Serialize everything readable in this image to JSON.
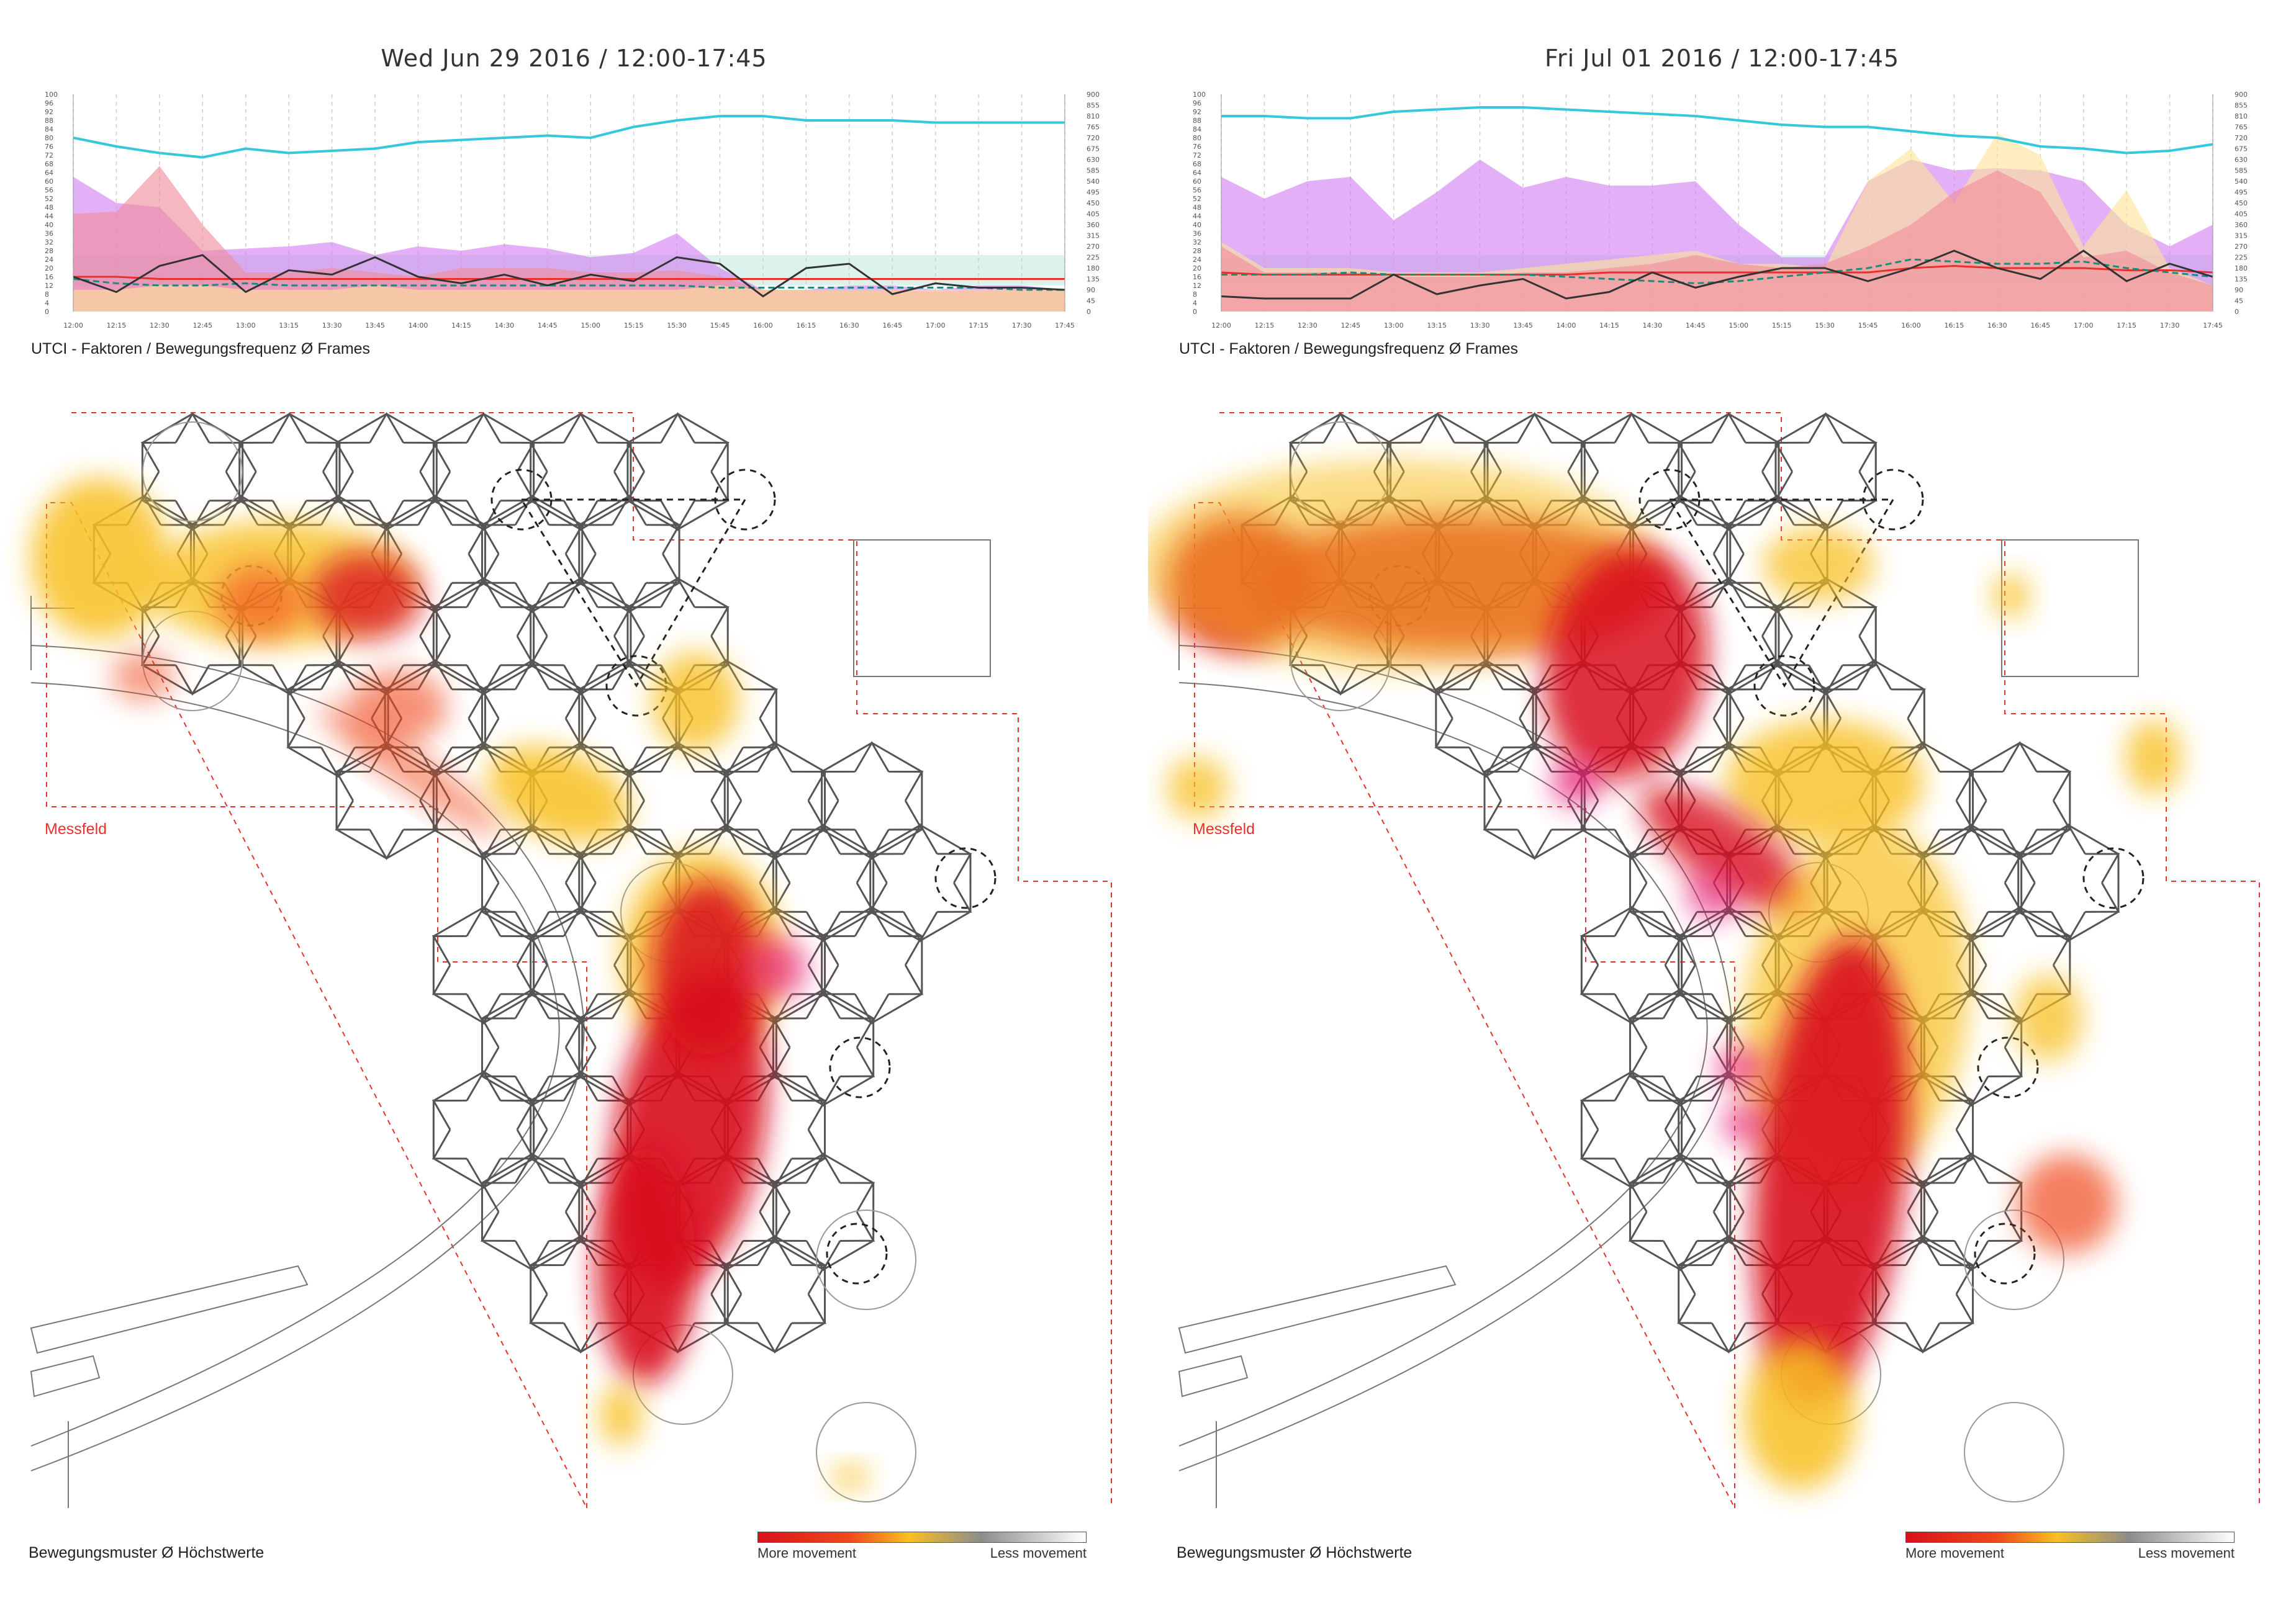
{
  "chart_data": [
    {
      "type": "area",
      "title": "Wed Jun 29 2016  /  12:00-17:45",
      "caption": "UTCI - Faktoren / Bewegungsfrequenz Ø Frames",
      "x": [
        "12:00",
        "12:15",
        "12:30",
        "12:45",
        "13:00",
        "13:15",
        "13:30",
        "13:45",
        "14:00",
        "14:15",
        "14:30",
        "14:45",
        "15:00",
        "15:15",
        "15:30",
        "15:45",
        "16:00",
        "16:15",
        "16:30",
        "16:45",
        "17:00",
        "17:15",
        "17:30",
        "17:45"
      ],
      "yticks_left": [
        "100",
        "96",
        "92",
        "88",
        "84",
        "80",
        "76",
        "72",
        "68",
        "64",
        "60",
        "56",
        "52",
        "48",
        "44",
        "40",
        "36",
        "32",
        "28",
        "24",
        "20",
        "16",
        "12",
        "8",
        "4",
        "0"
      ],
      "yticks_right": [
        "900",
        "855",
        "810",
        "765",
        "720",
        "675",
        "630",
        "585",
        "540",
        "495",
        "450",
        "405",
        "360",
        "315",
        "270",
        "225",
        "180",
        "135",
        "90",
        "45",
        "0"
      ],
      "ylim_left": [
        0,
        100
      ],
      "ylim_right": [
        0,
        900
      ],
      "comfort_band": [
        12,
        26
      ],
      "series": [
        {
          "name": "cyan",
          "color": "#35c8dc",
          "kind": "line",
          "values": [
            80,
            76,
            73,
            71,
            75,
            73,
            74,
            75,
            78,
            79,
            80,
            81,
            80,
            85,
            88,
            90,
            90,
            88,
            88,
            88,
            87,
            87,
            87,
            87
          ]
        },
        {
          "name": "violet",
          "color": "#d27ef0",
          "kind": "area",
          "values": [
            62,
            50,
            48,
            28,
            29,
            30,
            32,
            26,
            30,
            28,
            31,
            29,
            25,
            27,
            36,
            20,
            10,
            10,
            12,
            12,
            10,
            12,
            12,
            10
          ]
        },
        {
          "name": "pink",
          "color": "#f08c9a",
          "kind": "area",
          "values": [
            45,
            46,
            67,
            40,
            18,
            18,
            20,
            18,
            16,
            20,
            20,
            20,
            18,
            18,
            19,
            16,
            10,
            10,
            10,
            10,
            9,
            10,
            10,
            10
          ]
        },
        {
          "name": "yellow",
          "color": "#fde49a",
          "kind": "area",
          "values": [
            10,
            10,
            12,
            12,
            10,
            10,
            10,
            12,
            10,
            10,
            10,
            10,
            10,
            10,
            10,
            12,
            10,
            10,
            10,
            10,
            10,
            10,
            10,
            10
          ]
        },
        {
          "name": "red",
          "color": "#e8302c",
          "kind": "line",
          "values": [
            16,
            16,
            15,
            15,
            15,
            15,
            15,
            15,
            15,
            15,
            15,
            15,
            15,
            15,
            15,
            15,
            15,
            15,
            15,
            15,
            15,
            15,
            15,
            15
          ]
        },
        {
          "name": "teal-dashed",
          "color": "#1a8c7a",
          "kind": "dashed",
          "values": [
            15,
            13,
            12,
            12,
            13,
            12,
            12,
            12,
            12,
            12,
            12,
            12,
            12,
            12,
            12,
            11,
            11,
            11,
            11,
            11,
            11,
            11,
            10,
            10
          ]
        },
        {
          "name": "black",
          "color": "#333333",
          "kind": "line",
          "values": [
            16,
            9,
            21,
            26,
            9,
            19,
            17,
            25,
            16,
            13,
            17,
            12,
            17,
            14,
            25,
            22,
            7,
            20,
            22,
            8,
            13,
            11,
            11,
            10
          ]
        }
      ]
    },
    {
      "type": "area",
      "title": "Fri Jul 01 2016  /  12:00-17:45",
      "caption": "UTCI - Faktoren / Bewegungsfrequenz Ø Frames",
      "x": [
        "12:00",
        "12:15",
        "12:30",
        "12:45",
        "13:00",
        "13:15",
        "13:30",
        "13:45",
        "14:00",
        "14:15",
        "14:30",
        "14:45",
        "15:00",
        "15:15",
        "15:30",
        "15:45",
        "16:00",
        "16:15",
        "16:30",
        "16:45",
        "17:00",
        "17:15",
        "17:30",
        "17:45"
      ],
      "yticks_left": [
        "100",
        "96",
        "92",
        "88",
        "84",
        "80",
        "76",
        "72",
        "68",
        "64",
        "60",
        "56",
        "52",
        "48",
        "44",
        "40",
        "36",
        "32",
        "28",
        "24",
        "20",
        "16",
        "12",
        "8",
        "4",
        "0"
      ],
      "yticks_right": [
        "900",
        "855",
        "810",
        "765",
        "720",
        "675",
        "630",
        "585",
        "540",
        "495",
        "450",
        "405",
        "360",
        "315",
        "270",
        "225",
        "180",
        "135",
        "90",
        "45",
        "0"
      ],
      "ylim_left": [
        0,
        100
      ],
      "ylim_right": [
        0,
        900
      ],
      "comfort_band": [
        12,
        26
      ],
      "series": [
        {
          "name": "cyan",
          "color": "#35c8dc",
          "kind": "line",
          "values": [
            90,
            90,
            89,
            89,
            92,
            93,
            94,
            94,
            93,
            92,
            91,
            90,
            88,
            86,
            85,
            85,
            83,
            81,
            80,
            76,
            75,
            73,
            74,
            77
          ]
        },
        {
          "name": "violet",
          "color": "#d27ef0",
          "kind": "area",
          "values": [
            62,
            52,
            60,
            62,
            42,
            55,
            70,
            57,
            62,
            58,
            58,
            60,
            40,
            25,
            25,
            60,
            70,
            65,
            66,
            65,
            60,
            40,
            30,
            40
          ]
        },
        {
          "name": "yellow",
          "color": "#fde49a",
          "kind": "area",
          "values": [
            32,
            20,
            20,
            20,
            18,
            18,
            18,
            20,
            22,
            24,
            26,
            28,
            22,
            22,
            20,
            60,
            75,
            50,
            82,
            72,
            30,
            56,
            20,
            12
          ]
        },
        {
          "name": "pink",
          "color": "#f08c9a",
          "kind": "area",
          "values": [
            30,
            18,
            18,
            18,
            16,
            16,
            16,
            18,
            18,
            20,
            22,
            26,
            22,
            20,
            22,
            30,
            40,
            55,
            65,
            55,
            25,
            28,
            18,
            12
          ]
        },
        {
          "name": "red",
          "color": "#e8302c",
          "kind": "line",
          "values": [
            18,
            17,
            17,
            17,
            17,
            17,
            17,
            17,
            17,
            18,
            18,
            18,
            18,
            18,
            18,
            18,
            20,
            21,
            20,
            20,
            20,
            19,
            19,
            18
          ]
        },
        {
          "name": "teal-dashed",
          "color": "#1a8c7a",
          "kind": "dashed",
          "values": [
            17,
            17,
            17,
            18,
            17,
            17,
            17,
            17,
            16,
            15,
            14,
            13,
            14,
            16,
            18,
            20,
            24,
            23,
            22,
            22,
            23,
            20,
            18,
            16
          ]
        },
        {
          "name": "black",
          "color": "#333333",
          "kind": "line",
          "values": [
            7,
            6,
            6,
            6,
            17,
            8,
            12,
            15,
            6,
            9,
            18,
            11,
            16,
            20,
            20,
            14,
            20,
            28,
            20,
            15,
            28,
            14,
            22,
            16
          ]
        }
      ]
    }
  ],
  "maps": [
    {
      "caption": "Bewegungsmuster  Ø Höchstwerte",
      "area_label": "Messfeld",
      "legend_more": "More movement",
      "legend_less": "Less movement"
    },
    {
      "caption": "Bewegungsmuster  Ø Höchstwerte",
      "area_label": "Messfeld",
      "legend_more": "More movement",
      "legend_less": "Less movement"
    }
  ],
  "colors": {
    "heat_high": "#d9101c",
    "heat_mid": "#f04a1c",
    "heat_low": "#f8c020",
    "magenta": "#e8207a",
    "messfeld": "#e8302c",
    "structure": "#555555"
  }
}
